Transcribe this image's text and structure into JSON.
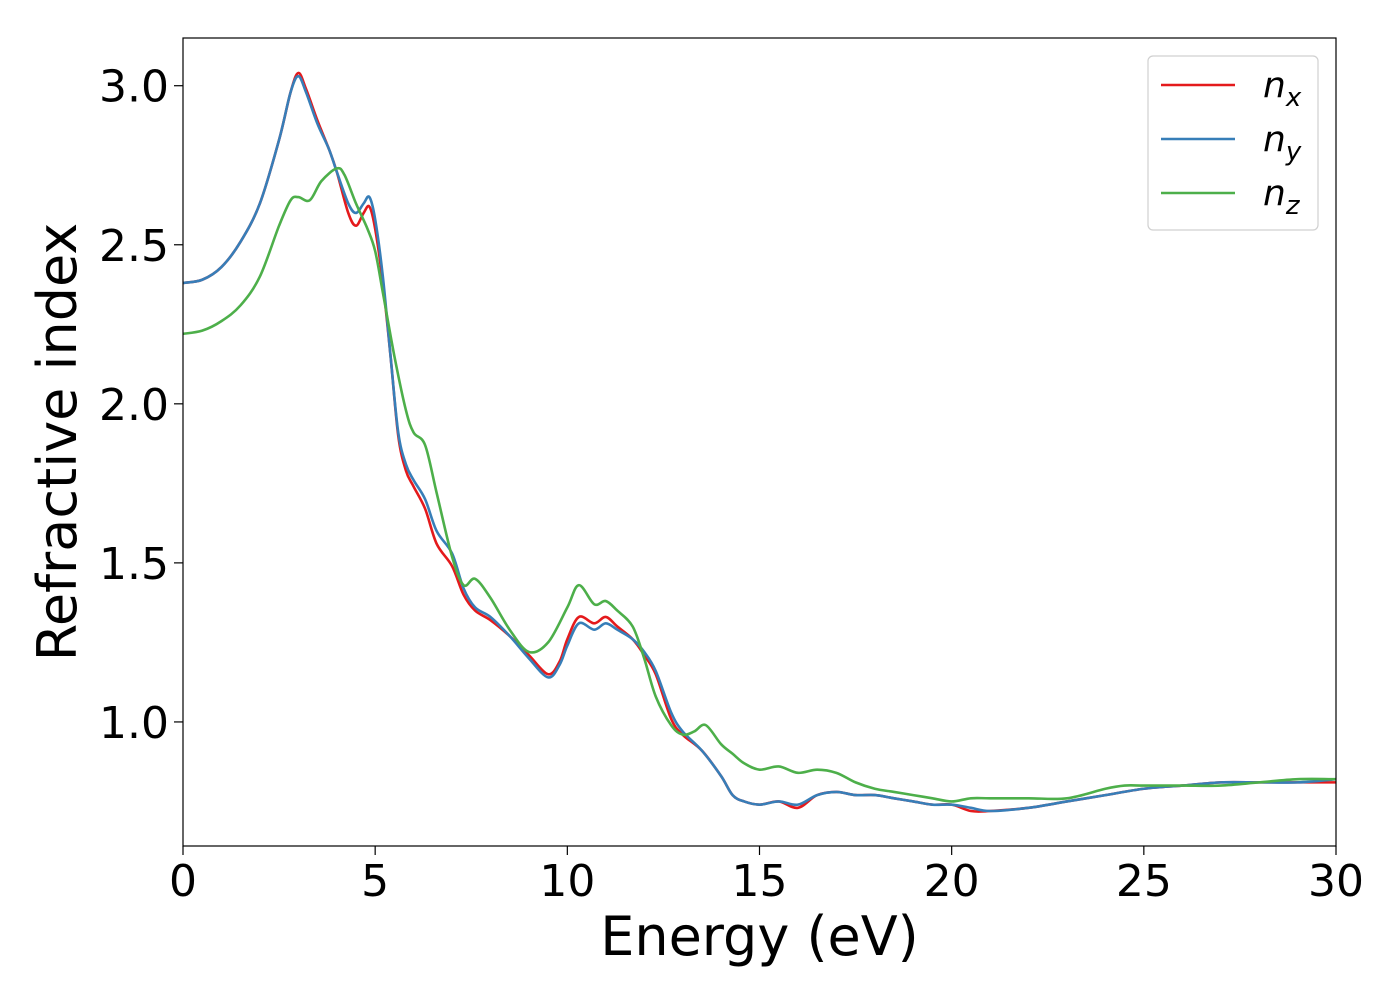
{
  "chart_data": {
    "type": "line",
    "xlabel": "Energy (eV)",
    "ylabel": "Refractive index",
    "xlim": [
      0,
      30
    ],
    "ylim": [
      0.61,
      3.15
    ],
    "xticks": [
      0,
      5,
      10,
      15,
      20,
      25,
      30
    ],
    "yticks": [
      1.0,
      1.5,
      2.0,
      2.5,
      3.0
    ],
    "xtick_labels": [
      "0",
      "5",
      "10",
      "15",
      "20",
      "25",
      "30"
    ],
    "ytick_labels": [
      "1.0",
      "1.5",
      "2.0",
      "2.5",
      "3.0"
    ],
    "grid": false,
    "legend": "top-right",
    "series": [
      {
        "name": "n_x",
        "label_base": "n",
        "label_sub": "x",
        "color": "#e41a1c",
        "x": [
          0,
          0.5,
          1.0,
          1.5,
          2.0,
          2.5,
          2.8,
          3.0,
          3.2,
          3.5,
          3.8,
          4.0,
          4.3,
          4.5,
          4.7,
          4.85,
          5.0,
          5.2,
          5.4,
          5.6,
          5.8,
          6.0,
          6.3,
          6.6,
          7.0,
          7.3,
          7.6,
          8.0,
          8.5,
          9.0,
          9.5,
          9.8,
          10.0,
          10.3,
          10.7,
          11.0,
          11.3,
          11.7,
          12.0,
          12.3,
          12.7,
          13.0,
          13.5,
          14.0,
          14.3,
          14.6,
          15.0,
          15.5,
          16.0,
          16.5,
          17.0,
          17.5,
          18.0,
          18.5,
          19.0,
          19.5,
          20.0,
          20.5,
          21.0,
          22.0,
          23.0,
          24.0,
          25.0,
          26.0,
          27.0,
          28.0,
          29.0,
          30.0
        ],
        "values": [
          2.38,
          2.39,
          2.43,
          2.51,
          2.63,
          2.83,
          2.98,
          3.04,
          2.99,
          2.89,
          2.8,
          2.73,
          2.6,
          2.56,
          2.6,
          2.62,
          2.55,
          2.38,
          2.15,
          1.9,
          1.79,
          1.74,
          1.67,
          1.56,
          1.49,
          1.4,
          1.35,
          1.32,
          1.27,
          1.21,
          1.15,
          1.19,
          1.26,
          1.33,
          1.31,
          1.33,
          1.3,
          1.26,
          1.21,
          1.15,
          1.01,
          0.96,
          0.91,
          0.83,
          0.77,
          0.75,
          0.74,
          0.75,
          0.73,
          0.77,
          0.78,
          0.77,
          0.77,
          0.76,
          0.75,
          0.74,
          0.74,
          0.72,
          0.72,
          0.73,
          0.75,
          0.77,
          0.79,
          0.8,
          0.81,
          0.81,
          0.81,
          0.81
        ]
      },
      {
        "name": "n_y",
        "label_base": "n",
        "label_sub": "y",
        "color": "#377eb8",
        "x": [
          0,
          0.5,
          1.0,
          1.5,
          2.0,
          2.5,
          2.8,
          3.0,
          3.2,
          3.5,
          3.8,
          4.0,
          4.3,
          4.5,
          4.7,
          4.85,
          5.0,
          5.2,
          5.4,
          5.6,
          5.8,
          6.0,
          6.3,
          6.6,
          7.0,
          7.3,
          7.6,
          8.0,
          8.5,
          9.0,
          9.5,
          9.8,
          10.0,
          10.3,
          10.7,
          11.0,
          11.3,
          11.7,
          12.0,
          12.3,
          12.7,
          13.0,
          13.5,
          14.0,
          14.3,
          14.6,
          15.0,
          15.5,
          16.0,
          16.5,
          17.0,
          17.5,
          18.0,
          18.5,
          19.0,
          19.5,
          20.0,
          20.5,
          21.0,
          22.0,
          23.0,
          24.0,
          25.0,
          26.0,
          27.0,
          28.0,
          29.0,
          30.0
        ],
        "values": [
          2.38,
          2.39,
          2.43,
          2.51,
          2.63,
          2.83,
          2.98,
          3.03,
          2.98,
          2.88,
          2.8,
          2.73,
          2.63,
          2.6,
          2.63,
          2.65,
          2.58,
          2.4,
          2.15,
          1.91,
          1.81,
          1.76,
          1.7,
          1.6,
          1.53,
          1.42,
          1.36,
          1.33,
          1.27,
          1.2,
          1.14,
          1.18,
          1.24,
          1.31,
          1.29,
          1.31,
          1.29,
          1.26,
          1.22,
          1.16,
          1.03,
          0.97,
          0.91,
          0.83,
          0.77,
          0.75,
          0.74,
          0.75,
          0.74,
          0.77,
          0.78,
          0.77,
          0.77,
          0.76,
          0.75,
          0.74,
          0.74,
          0.73,
          0.72,
          0.73,
          0.75,
          0.77,
          0.79,
          0.8,
          0.81,
          0.81,
          0.81,
          0.82
        ]
      },
      {
        "name": "n_z",
        "label_base": "n",
        "label_sub": "z",
        "color": "#4daf4a",
        "x": [
          0,
          0.5,
          1.0,
          1.5,
          2.0,
          2.5,
          2.8,
          3.0,
          3.3,
          3.6,
          4.0,
          4.2,
          4.5,
          4.8,
          5.0,
          5.2,
          5.5,
          5.8,
          6.0,
          6.3,
          6.6,
          7.0,
          7.3,
          7.6,
          8.0,
          8.5,
          9.0,
          9.5,
          10.0,
          10.3,
          10.7,
          11.0,
          11.3,
          11.7,
          12.0,
          12.3,
          12.7,
          13.0,
          13.3,
          13.6,
          14.0,
          14.3,
          14.6,
          15.0,
          15.5,
          16.0,
          16.5,
          17.0,
          17.5,
          18.0,
          18.5,
          19.0,
          19.5,
          20.0,
          20.5,
          21.0,
          22.0,
          23.0,
          24.0,
          24.5,
          25.0,
          26.0,
          27.0,
          28.0,
          29.0,
          30.0
        ],
        "values": [
          2.22,
          2.23,
          2.26,
          2.31,
          2.4,
          2.56,
          2.64,
          2.65,
          2.64,
          2.7,
          2.74,
          2.72,
          2.63,
          2.55,
          2.48,
          2.35,
          2.15,
          1.98,
          1.91,
          1.87,
          1.72,
          1.52,
          1.43,
          1.45,
          1.39,
          1.29,
          1.22,
          1.25,
          1.36,
          1.43,
          1.37,
          1.38,
          1.35,
          1.3,
          1.2,
          1.08,
          0.99,
          0.96,
          0.97,
          0.99,
          0.93,
          0.9,
          0.87,
          0.85,
          0.86,
          0.84,
          0.85,
          0.84,
          0.81,
          0.79,
          0.78,
          0.77,
          0.76,
          0.75,
          0.76,
          0.76,
          0.76,
          0.76,
          0.79,
          0.8,
          0.8,
          0.8,
          0.8,
          0.81,
          0.82,
          0.82
        ]
      }
    ]
  }
}
